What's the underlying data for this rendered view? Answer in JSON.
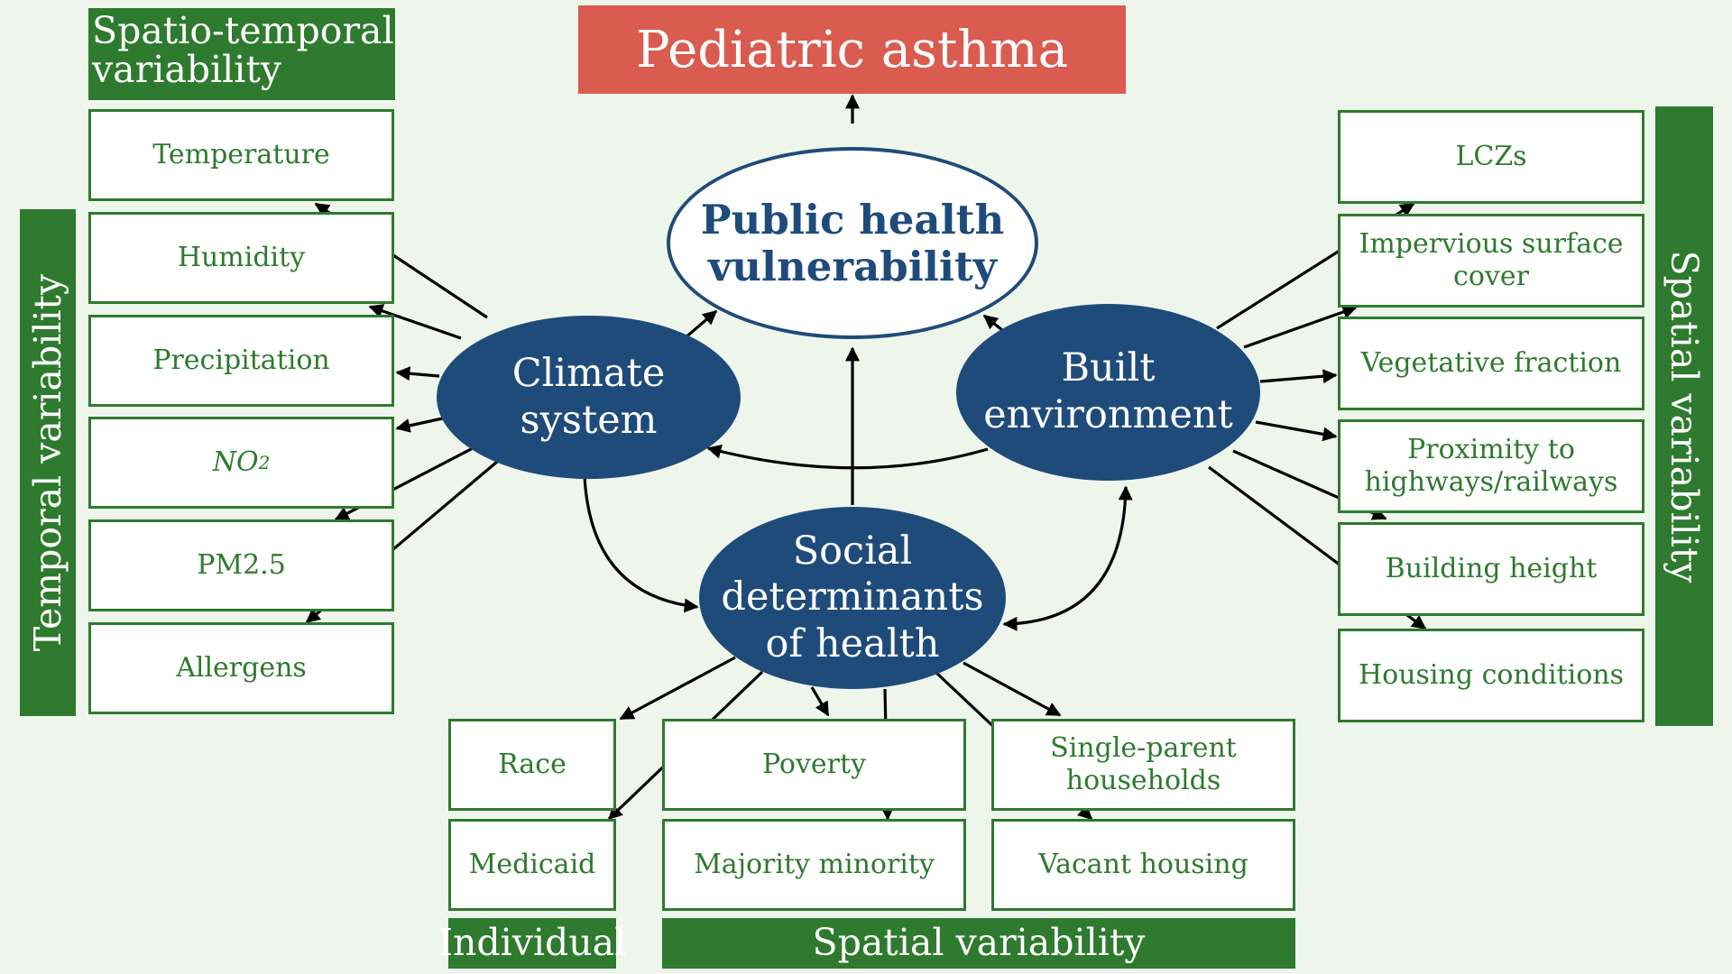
{
  "title": "Pediatric asthma",
  "center_node": "Public health\nvulnerability",
  "climate": {
    "label": "Climate\nsystem",
    "header": "Spatio-temporal\nvariability",
    "side_label": "Temporal variability",
    "items": [
      "Temperature",
      "Humidity",
      "Precipitation",
      "NO",
      "PM2.5",
      "Allergens"
    ],
    "no2_subscript": "2"
  },
  "built": {
    "label": "Built\nenvironment",
    "side_label": "Spatial variability",
    "items": [
      "LCZs",
      "Impervious surface\ncover",
      "Vegetative fraction",
      "Proximity to\nhighways/railways",
      "Building height",
      "Housing conditions"
    ]
  },
  "social": {
    "label": "Social\ndeterminants\nof health",
    "individual": {
      "items": [
        "Race",
        "Medicaid"
      ],
      "label": "Individual"
    },
    "spatial": {
      "items": [
        "Poverty",
        "Single-parent\nhouseholds",
        "Majority minority",
        "Vacant housing"
      ],
      "label": "Spatial variability"
    }
  },
  "colors": {
    "green": "#2e7a2e",
    "navy": "#1f4b7a",
    "red": "#da5b4f",
    "background": "#eef6ec"
  }
}
